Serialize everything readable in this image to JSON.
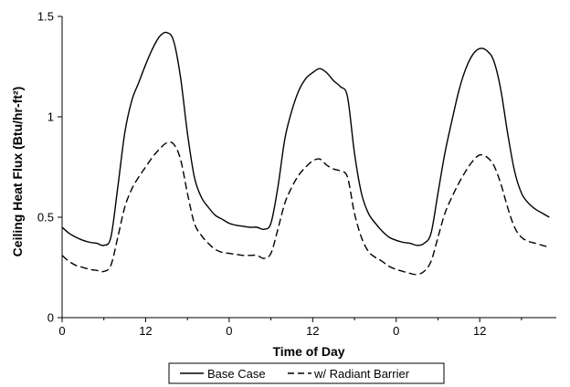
{
  "chart_data": {
    "type": "line",
    "title": "",
    "xlabel": "Time of Day",
    "ylabel": "Ceiling Heat Flux (Btu/hr-ft²)",
    "xlim": [
      0,
      71
    ],
    "ylim": [
      0,
      1.5
    ],
    "x_ticks": [
      0,
      12,
      24,
      36,
      48,
      60
    ],
    "x_tick_labels": [
      "0",
      "12",
      "0",
      "12",
      "0",
      "12"
    ],
    "y_ticks": [
      0,
      0.5,
      1,
      1.5
    ],
    "y_tick_labels": [
      "0",
      "0.5",
      "1",
      "1.5"
    ],
    "grid": false,
    "legend_position": "bottom",
    "series": [
      {
        "name": "Base Case",
        "style": "solid",
        "color": "#000000",
        "points": [
          [
            0,
            0.45
          ],
          [
            1,
            0.42
          ],
          [
            2,
            0.4
          ],
          [
            3,
            0.385
          ],
          [
            4,
            0.375
          ],
          [
            5,
            0.37
          ],
          [
            6,
            0.36
          ],
          [
            7,
            0.4
          ],
          [
            8,
            0.65
          ],
          [
            9,
            0.92
          ],
          [
            10,
            1.08
          ],
          [
            11,
            1.17
          ],
          [
            12,
            1.26
          ],
          [
            13,
            1.34
          ],
          [
            14,
            1.4
          ],
          [
            15,
            1.42
          ],
          [
            16,
            1.38
          ],
          [
            17,
            1.2
          ],
          [
            18,
            0.92
          ],
          [
            19,
            0.7
          ],
          [
            20,
            0.6
          ],
          [
            21,
            0.55
          ],
          [
            22,
            0.51
          ],
          [
            23,
            0.49
          ],
          [
            24,
            0.47
          ],
          [
            25,
            0.46
          ],
          [
            26,
            0.455
          ],
          [
            27,
            0.45
          ],
          [
            28,
            0.45
          ],
          [
            29,
            0.44
          ],
          [
            30,
            0.47
          ],
          [
            31,
            0.65
          ],
          [
            32,
            0.89
          ],
          [
            33,
            1.03
          ],
          [
            34,
            1.13
          ],
          [
            35,
            1.19
          ],
          [
            36,
            1.22
          ],
          [
            37,
            1.24
          ],
          [
            38,
            1.22
          ],
          [
            39,
            1.18
          ],
          [
            40,
            1.15
          ],
          [
            41,
            1.1
          ],
          [
            42,
            0.82
          ],
          [
            43,
            0.62
          ],
          [
            44,
            0.52
          ],
          [
            45,
            0.47
          ],
          [
            46,
            0.43
          ],
          [
            47,
            0.4
          ],
          [
            48,
            0.385
          ],
          [
            49,
            0.375
          ],
          [
            50,
            0.37
          ],
          [
            51,
            0.36
          ],
          [
            52,
            0.37
          ],
          [
            53,
            0.42
          ],
          [
            54,
            0.62
          ],
          [
            55,
            0.82
          ],
          [
            56,
            0.98
          ],
          [
            57,
            1.13
          ],
          [
            58,
            1.24
          ],
          [
            59,
            1.31
          ],
          [
            60,
            1.34
          ],
          [
            61,
            1.33
          ],
          [
            62,
            1.28
          ],
          [
            63,
            1.14
          ],
          [
            64,
            0.92
          ],
          [
            65,
            0.73
          ],
          [
            66,
            0.62
          ],
          [
            67,
            0.57
          ],
          [
            68,
            0.54
          ],
          [
            69,
            0.52
          ],
          [
            70,
            0.5
          ]
        ]
      },
      {
        "name": "w/ Radiant Barrier",
        "style": "dashed",
        "color": "#000000",
        "points": [
          [
            0,
            0.31
          ],
          [
            1,
            0.28
          ],
          [
            2,
            0.26
          ],
          [
            3,
            0.25
          ],
          [
            4,
            0.24
          ],
          [
            5,
            0.235
          ],
          [
            6,
            0.23
          ],
          [
            7,
            0.26
          ],
          [
            8,
            0.4
          ],
          [
            9,
            0.55
          ],
          [
            10,
            0.64
          ],
          [
            11,
            0.7
          ],
          [
            12,
            0.75
          ],
          [
            13,
            0.8
          ],
          [
            14,
            0.84
          ],
          [
            15,
            0.87
          ],
          [
            16,
            0.865
          ],
          [
            17,
            0.79
          ],
          [
            18,
            0.62
          ],
          [
            19,
            0.47
          ],
          [
            20,
            0.41
          ],
          [
            21,
            0.37
          ],
          [
            22,
            0.34
          ],
          [
            23,
            0.325
          ],
          [
            24,
            0.32
          ],
          [
            25,
            0.315
          ],
          [
            26,
            0.31
          ],
          [
            27,
            0.31
          ],
          [
            28,
            0.31
          ],
          [
            29,
            0.295
          ],
          [
            30,
            0.32
          ],
          [
            31,
            0.44
          ],
          [
            32,
            0.57
          ],
          [
            33,
            0.65
          ],
          [
            34,
            0.71
          ],
          [
            35,
            0.75
          ],
          [
            36,
            0.78
          ],
          [
            37,
            0.79
          ],
          [
            38,
            0.76
          ],
          [
            39,
            0.74
          ],
          [
            40,
            0.73
          ],
          [
            41,
            0.7
          ],
          [
            42,
            0.52
          ],
          [
            43,
            0.4
          ],
          [
            44,
            0.33
          ],
          [
            45,
            0.3
          ],
          [
            46,
            0.28
          ],
          [
            47,
            0.255
          ],
          [
            48,
            0.24
          ],
          [
            49,
            0.23
          ],
          [
            50,
            0.22
          ],
          [
            51,
            0.215
          ],
          [
            52,
            0.23
          ],
          [
            53,
            0.28
          ],
          [
            54,
            0.4
          ],
          [
            55,
            0.52
          ],
          [
            56,
            0.6
          ],
          [
            57,
            0.67
          ],
          [
            58,
            0.73
          ],
          [
            59,
            0.78
          ],
          [
            60,
            0.81
          ],
          [
            61,
            0.8
          ],
          [
            62,
            0.76
          ],
          [
            63,
            0.67
          ],
          [
            64,
            0.55
          ],
          [
            65,
            0.45
          ],
          [
            66,
            0.4
          ],
          [
            67,
            0.38
          ],
          [
            68,
            0.37
          ],
          [
            69,
            0.36
          ],
          [
            70,
            0.35
          ]
        ]
      }
    ]
  }
}
